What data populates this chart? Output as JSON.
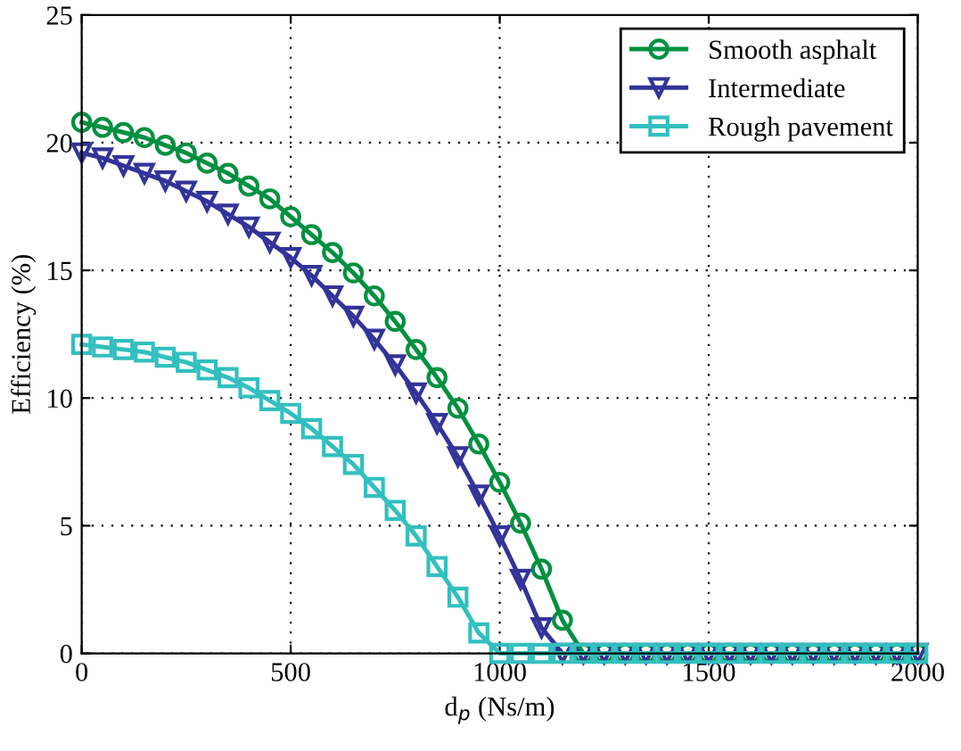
{
  "chart_data": {
    "type": "line",
    "xlabel": "d$_{p}$ (Ns/m)",
    "ylabel": "Efficiency (%)",
    "x": [
      0,
      50,
      100,
      150,
      200,
      250,
      300,
      350,
      400,
      450,
      500,
      550,
      600,
      650,
      700,
      750,
      800,
      850,
      900,
      950,
      1000,
      1050,
      1100,
      1150,
      1200,
      1250,
      1300,
      1350,
      1400,
      1450,
      1500,
      1550,
      1600,
      1650,
      1700,
      1750,
      1800,
      1850,
      1900,
      1950,
      2000
    ],
    "series": [
      {
        "name": "Smooth asphalt",
        "color": "#009040",
        "marker": "circle",
        "values": [
          20.8,
          20.6,
          20.4,
          20.2,
          19.9,
          19.6,
          19.2,
          18.8,
          18.3,
          17.8,
          17.1,
          16.4,
          15.7,
          14.9,
          14.0,
          13.0,
          11.9,
          10.8,
          9.6,
          8.2,
          6.7,
          5.1,
          3.3,
          1.3,
          0,
          0,
          0,
          0,
          0,
          0,
          0,
          0,
          0,
          0,
          0,
          0,
          0,
          0,
          0,
          0,
          0
        ]
      },
      {
        "name": "Intermediate",
        "color": "#333399",
        "marker": "triangle",
        "values": [
          19.6,
          19.4,
          19.1,
          18.8,
          18.5,
          18.1,
          17.7,
          17.2,
          16.7,
          16.1,
          15.5,
          14.8,
          14.0,
          13.2,
          12.3,
          11.3,
          10.2,
          9.0,
          7.7,
          6.2,
          4.6,
          2.9,
          1.0,
          0,
          0,
          0,
          0,
          0,
          0,
          0,
          0,
          0,
          0,
          0,
          0,
          0,
          0,
          0,
          0,
          0,
          0
        ]
      },
      {
        "name": "Rough pavement",
        "color": "#33bfbf",
        "marker": "square",
        "values": [
          12.1,
          12.0,
          11.9,
          11.8,
          11.6,
          11.4,
          11.1,
          10.8,
          10.4,
          9.9,
          9.4,
          8.8,
          8.1,
          7.4,
          6.5,
          5.6,
          4.6,
          3.4,
          2.2,
          0.8,
          0,
          0,
          0,
          0,
          0,
          0,
          0,
          0,
          0,
          0,
          0,
          0,
          0,
          0,
          0,
          0,
          0,
          0,
          0,
          0,
          0
        ]
      }
    ],
    "xlim": [
      0,
      2000
    ],
    "xticks": [
      0,
      500,
      1000,
      1500,
      2000
    ],
    "ylim": [
      0,
      25
    ],
    "yticks": [
      0,
      5,
      10,
      15,
      20,
      25
    ],
    "grid": true,
    "legend": "top right",
    "line_style": "solid"
  }
}
